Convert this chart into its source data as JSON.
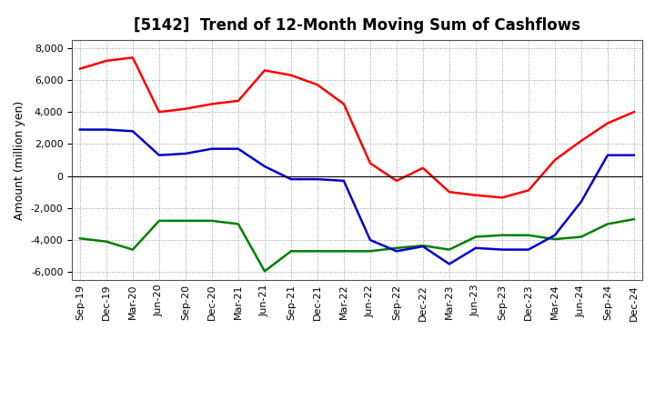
{
  "title": "[5142]  Trend of 12-Month Moving Sum of Cashflows",
  "ylabel": "Amount (million yen)",
  "x_labels": [
    "Sep-19",
    "Dec-19",
    "Mar-20",
    "Jun-20",
    "Sep-20",
    "Dec-20",
    "Mar-21",
    "Jun-21",
    "Sep-21",
    "Dec-21",
    "Mar-22",
    "Jun-22",
    "Sep-22",
    "Dec-22",
    "Mar-23",
    "Jun-23",
    "Sep-23",
    "Dec-23",
    "Mar-24",
    "Jun-24",
    "Sep-24",
    "Dec-24"
  ],
  "operating": [
    6700,
    7200,
    7400,
    4000,
    4200,
    4500,
    4700,
    6600,
    6300,
    5700,
    4500,
    800,
    -300,
    500,
    -1000,
    -1200,
    -1350,
    -900,
    1000,
    2200,
    3300,
    4000
  ],
  "investing": [
    -3900,
    -4100,
    -4600,
    -2800,
    -2800,
    -2800,
    -3000,
    -5950,
    -4700,
    -4700,
    -4700,
    -4700,
    -4500,
    -4350,
    -4600,
    -3800,
    -3700,
    -3700,
    -3950,
    -3800,
    -3000,
    -2700
  ],
  "free": [
    2900,
    2900,
    2800,
    1300,
    1400,
    1700,
    1700,
    600,
    -200,
    -200,
    -300,
    -4000,
    -4700,
    -4400,
    -5500,
    -4500,
    -4600,
    -4600,
    -3700,
    -1600,
    1300,
    1300
  ],
  "ylim": [
    -6500,
    8500
  ],
  "yticks": [
    -6000,
    -4000,
    -2000,
    0,
    2000,
    4000,
    6000,
    8000
  ],
  "operating_color": "#ff0000",
  "investing_color": "#008000",
  "free_color": "#0000cc",
  "bg_color": "#ffffff",
  "plot_bg_color": "#ffffff",
  "grid_color": "#999999",
  "title_fontsize": 12,
  "axis_fontsize": 9,
  "tick_fontsize": 8,
  "legend_fontsize": 9,
  "linewidth": 1.8
}
